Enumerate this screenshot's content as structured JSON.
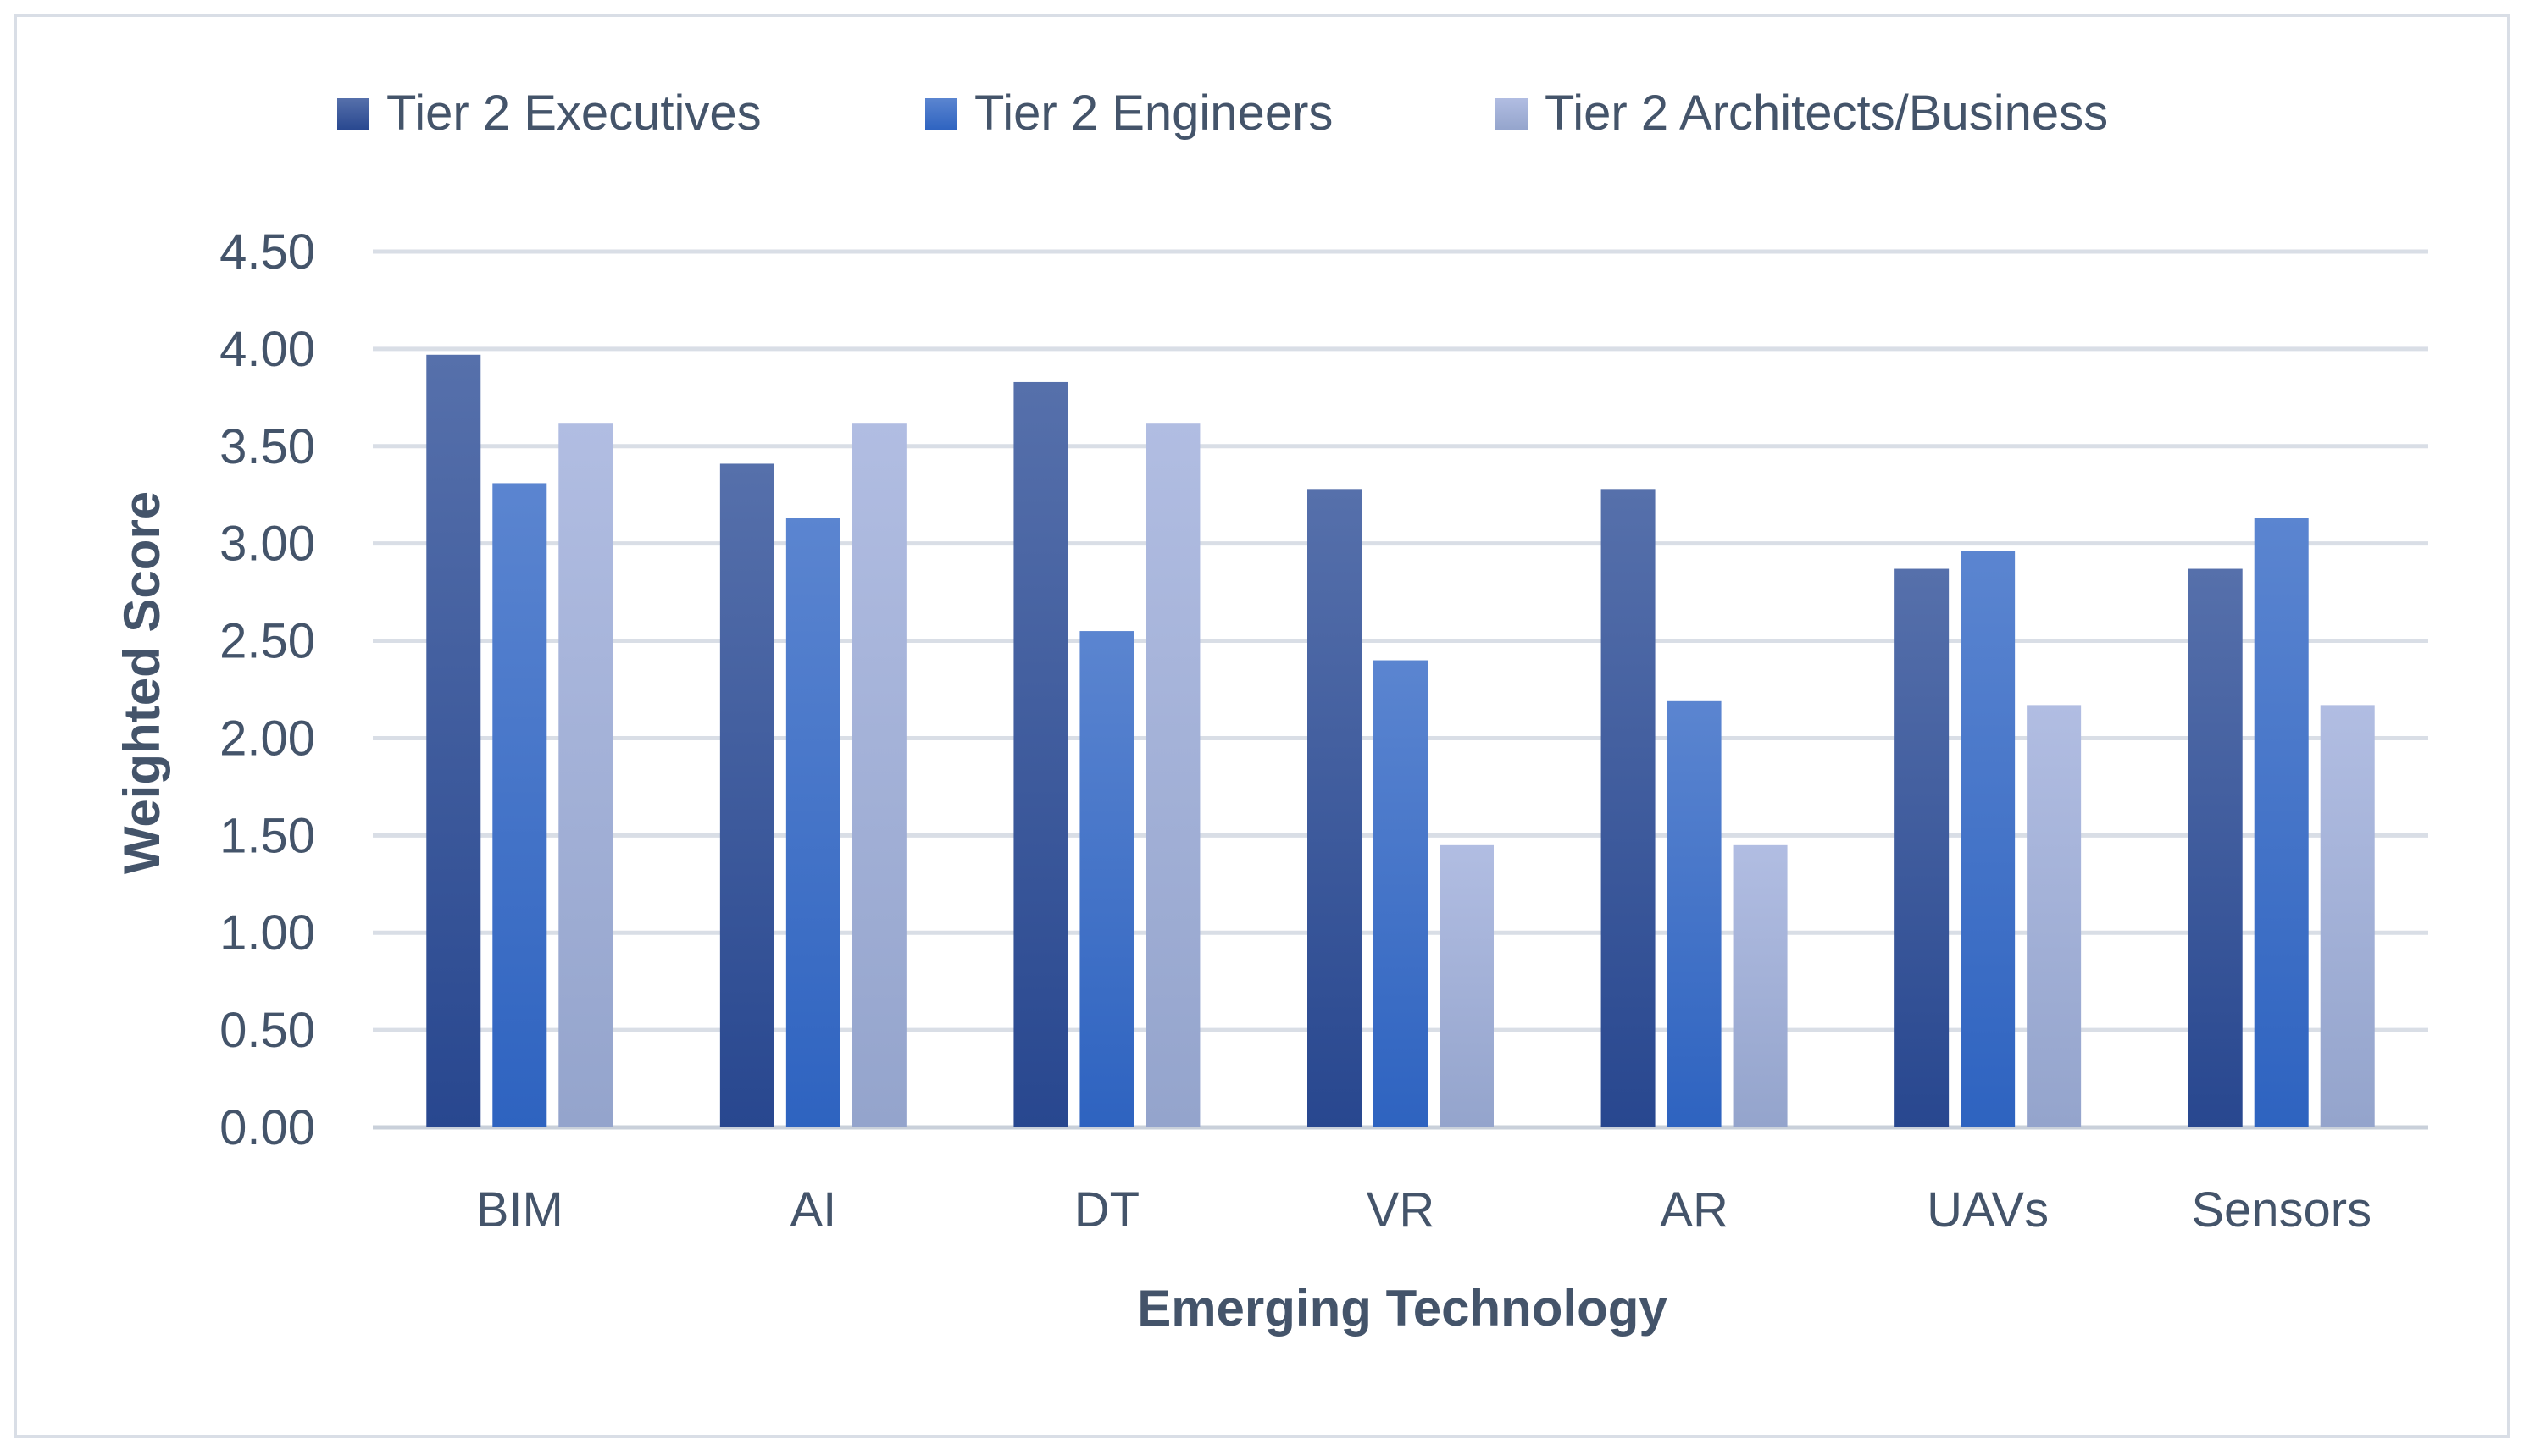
{
  "chart_data": {
    "type": "bar",
    "title": "",
    "xlabel": "Emerging Technology",
    "ylabel": "Weighted Score",
    "categories": [
      "BIM",
      "AI",
      "DT",
      "VR",
      "AR",
      "UAVs",
      "Sensors"
    ],
    "series": [
      {
        "name": "Tier 2 Executives",
        "values": [
          3.97,
          3.41,
          3.83,
          3.28,
          3.28,
          2.87,
          2.87
        ]
      },
      {
        "name": "Tier 2 Engineers",
        "values": [
          3.31,
          3.13,
          2.55,
          2.4,
          2.19,
          2.96,
          3.13
        ]
      },
      {
        "name": "Tier 2 Architects/Business",
        "values": [
          3.62,
          3.62,
          3.62,
          1.45,
          1.45,
          2.17,
          2.17
        ]
      }
    ],
    "ylim": [
      0,
      4.5
    ],
    "yticks": [
      "0.00",
      "0.50",
      "1.00",
      "1.50",
      "2.00",
      "2.50",
      "3.00",
      "3.50",
      "4.00",
      "4.50"
    ],
    "legend_position": "top",
    "grid": true,
    "colors": {
      "series": [
        {
          "top": "#5670ab",
          "bottom": "#28478f"
        },
        {
          "top": "#5b85d0",
          "bottom": "#2e63c0"
        },
        {
          "top": "#b1bde2",
          "bottom": "#94a4cc"
        }
      ],
      "text": "#44546a",
      "grid": "#d9dee6",
      "axis": "#c9d0da",
      "frame": "#d9dee6"
    }
  }
}
